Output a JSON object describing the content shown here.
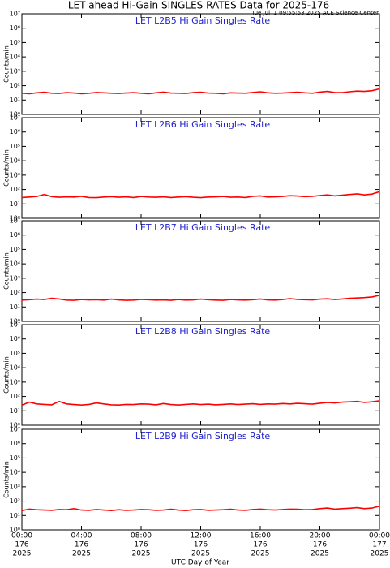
{
  "title": "LET ahead Hi-Gain SINGLES RATES Data for 2025-176",
  "timestamp": "Tue Jul  1 09:55:53 2025 ACE Science Center",
  "chart_data": [
    {
      "type": "line",
      "title": "LET L2B5 Hi Gain Singles Rate",
      "ylabel": "Counts/min",
      "log_y": true,
      "x": [
        0,
        0.5,
        1,
        1.5,
        2,
        2.5,
        3,
        3.5,
        4,
        4.5,
        5,
        5.5,
        6,
        6.5,
        7,
        7.5,
        8,
        8.5,
        9,
        9.5,
        10,
        10.5,
        11,
        11.5,
        12,
        12.5,
        13,
        13.5,
        14,
        14.5,
        15,
        15.5,
        16,
        16.5,
        17,
        17.5,
        18,
        18.5,
        19,
        19.5,
        20,
        20.5,
        21,
        21.5,
        22,
        22.5,
        23,
        23.5,
        24
      ],
      "series": [
        {
          "color": "#ff0000",
          "values": [
            30,
            28,
            32,
            35,
            30,
            29,
            33,
            31,
            28,
            30,
            34,
            32,
            30,
            29,
            31,
            33,
            30,
            28,
            32,
            36,
            31,
            30,
            29,
            33,
            35,
            31,
            30,
            28,
            32,
            31,
            30,
            34,
            38,
            32,
            30,
            31,
            33,
            35,
            32,
            30,
            36,
            40,
            34,
            33,
            38,
            42,
            40,
            45,
            60
          ]
        }
      ],
      "xlim": [
        0,
        24
      ],
      "xticks": [
        0,
        4,
        8,
        12,
        16,
        20,
        24
      ],
      "ylim": [
        1,
        10000000
      ],
      "yticks": [
        {
          "value": 1,
          "label": "10⁰"
        },
        {
          "value": 10,
          "label": "10¹"
        },
        {
          "value": 100,
          "label": "10²"
        },
        {
          "value": 1000,
          "label": "10³"
        },
        {
          "value": 10000,
          "label": "10⁴"
        },
        {
          "value": 100000,
          "label": "10⁵"
        },
        {
          "value": 1000000,
          "label": "10⁶"
        },
        {
          "value": 10000000,
          "label": "10⁷"
        }
      ]
    },
    {
      "type": "line",
      "title": "LET L2B6 Hi Gain Singles Rate",
      "ylabel": "Counts/min",
      "log_y": true,
      "x": [
        0,
        0.5,
        1,
        1.5,
        2,
        2.5,
        3,
        3.5,
        4,
        4.5,
        5,
        5.5,
        6,
        6.5,
        7,
        7.5,
        8,
        8.5,
        9,
        9.5,
        10,
        10.5,
        11,
        11.5,
        12,
        12.5,
        13,
        13.5,
        14,
        14.5,
        15,
        15.5,
        16,
        16.5,
        17,
        17.5,
        18,
        18.5,
        19,
        19.5,
        20,
        20.5,
        21,
        21.5,
        22,
        22.5,
        23,
        23.5,
        24
      ],
      "series": [
        {
          "color": "#ff0000",
          "values": [
            28,
            30,
            33,
            45,
            32,
            29,
            31,
            30,
            34,
            28,
            27,
            30,
            32,
            29,
            31,
            28,
            33,
            30,
            29,
            31,
            28,
            30,
            32,
            29,
            27,
            30,
            31,
            33,
            29,
            30,
            28,
            34,
            36,
            30,
            31,
            33,
            37,
            35,
            32,
            34,
            38,
            42,
            36,
            40,
            45,
            50,
            42,
            48,
            70
          ]
        }
      ],
      "xlim": [
        0,
        24
      ],
      "xticks": [
        0,
        4,
        8,
        12,
        16,
        20,
        24
      ],
      "ylim": [
        1,
        10000000
      ],
      "yticks": [
        {
          "value": 1,
          "label": "10⁰"
        },
        {
          "value": 10,
          "label": "10¹"
        },
        {
          "value": 100,
          "label": "10²"
        },
        {
          "value": 1000,
          "label": "10³"
        },
        {
          "value": 10000,
          "label": "10⁴"
        },
        {
          "value": 100000,
          "label": "10⁵"
        },
        {
          "value": 1000000,
          "label": "10⁶"
        },
        {
          "value": 10000000,
          "label": "10⁷"
        }
      ]
    },
    {
      "type": "line",
      "title": "LET L2B7 Hi Gain Singles Rate",
      "ylabel": "Counts/min",
      "log_y": true,
      "x": [
        0,
        0.5,
        1,
        1.5,
        2,
        2.5,
        3,
        3.5,
        4,
        4.5,
        5,
        5.5,
        6,
        6.5,
        7,
        7.5,
        8,
        8.5,
        9,
        9.5,
        10,
        10.5,
        11,
        11.5,
        12,
        12.5,
        13,
        13.5,
        14,
        14.5,
        15,
        15.5,
        16,
        16.5,
        17,
        17.5,
        18,
        18.5,
        19,
        19.5,
        20,
        20.5,
        21,
        21.5,
        22,
        22.5,
        23,
        23.5,
        24
      ],
      "series": [
        {
          "color": "#ff0000",
          "values": [
            30,
            32,
            35,
            33,
            40,
            36,
            30,
            29,
            33,
            31,
            32,
            30,
            35,
            31,
            29,
            30,
            34,
            32,
            30,
            31,
            29,
            33,
            30,
            31,
            35,
            32,
            30,
            29,
            33,
            31,
            30,
            32,
            36,
            31,
            30,
            33,
            38,
            34,
            32,
            31,
            35,
            37,
            33,
            36,
            40,
            42,
            45,
            50,
            65
          ]
        }
      ],
      "xlim": [
        0,
        24
      ],
      "xticks": [
        0,
        4,
        8,
        12,
        16,
        20,
        24
      ],
      "ylim": [
        1,
        10000000
      ],
      "yticks": [
        {
          "value": 1,
          "label": "10⁰"
        },
        {
          "value": 10,
          "label": "10¹"
        },
        {
          "value": 100,
          "label": "10²"
        },
        {
          "value": 1000,
          "label": "10³"
        },
        {
          "value": 10000,
          "label": "10⁴"
        },
        {
          "value": 100000,
          "label": "10⁵"
        },
        {
          "value": 1000000,
          "label": "10⁶"
        },
        {
          "value": 10000000,
          "label": "10⁷"
        }
      ]
    },
    {
      "type": "line",
      "title": "LET L2B8 Hi Gain Singles Rate",
      "ylabel": "Counts/min",
      "log_y": true,
      "x": [
        0,
        0.5,
        1,
        1.5,
        2,
        2.5,
        3,
        3.5,
        4,
        4.5,
        5,
        5.5,
        6,
        6.5,
        7,
        7.5,
        8,
        8.5,
        9,
        9.5,
        10,
        10.5,
        11,
        11.5,
        12,
        12.5,
        13,
        13.5,
        14,
        14.5,
        15,
        15.5,
        16,
        16.5,
        17,
        17.5,
        18,
        18.5,
        19,
        19.5,
        20,
        20.5,
        21,
        21.5,
        22,
        22.5,
        23,
        23.5,
        24
      ],
      "series": [
        {
          "color": "#ff0000",
          "values": [
            25,
            40,
            30,
            28,
            26,
            45,
            30,
            27,
            25,
            28,
            35,
            30,
            26,
            25,
            28,
            27,
            30,
            29,
            26,
            32,
            27,
            25,
            28,
            30,
            27,
            29,
            26,
            28,
            30,
            27,
            29,
            31,
            28,
            30,
            29,
            32,
            30,
            33,
            31,
            29,
            34,
            38,
            35,
            40,
            42,
            45,
            38,
            42,
            50
          ]
        }
      ],
      "xlim": [
        0,
        24
      ],
      "xticks": [
        0,
        4,
        8,
        12,
        16,
        20,
        24
      ],
      "ylim": [
        1,
        10000000
      ],
      "yticks": [
        {
          "value": 1,
          "label": "10⁰"
        },
        {
          "value": 10,
          "label": "10¹"
        },
        {
          "value": 100,
          "label": "10²"
        },
        {
          "value": 1000,
          "label": "10³"
        },
        {
          "value": 10000,
          "label": "10⁴"
        },
        {
          "value": 100000,
          "label": "10⁵"
        },
        {
          "value": 1000000,
          "label": "10⁶"
        },
        {
          "value": 10000000,
          "label": "10⁷"
        }
      ]
    },
    {
      "type": "line",
      "title": "LET L2B9 Hi Gain Singles Rate",
      "ylabel": "Counts/min",
      "xlabel": "UTC Day of Year",
      "log_y": true,
      "x": [
        0,
        0.5,
        1,
        1.5,
        2,
        2.5,
        3,
        3.5,
        4,
        4.5,
        5,
        5.5,
        6,
        6.5,
        7,
        7.5,
        8,
        8.5,
        9,
        9.5,
        10,
        10.5,
        11,
        11.5,
        12,
        12.5,
        13,
        13.5,
        14,
        14.5,
        15,
        15.5,
        16,
        16.5,
        17,
        17.5,
        18,
        18.5,
        19,
        19.5,
        20,
        20.5,
        21,
        21.5,
        22,
        22.5,
        23,
        23.5,
        24
      ],
      "series": [
        {
          "color": "#ff0000",
          "values": [
            22,
            28,
            25,
            24,
            23,
            26,
            25,
            30,
            24,
            23,
            26,
            24,
            22,
            25,
            23,
            24,
            26,
            25,
            23,
            24,
            27,
            24,
            22,
            25,
            26,
            23,
            24,
            25,
            27,
            24,
            23,
            26,
            28,
            25,
            24,
            26,
            28,
            27,
            25,
            26,
            30,
            33,
            28,
            30,
            32,
            35,
            30,
            33,
            45
          ]
        }
      ],
      "xlim": [
        0,
        24
      ],
      "xticks": [
        {
          "value": 0,
          "label": [
            "00:00",
            "176",
            "2025"
          ]
        },
        {
          "value": 4,
          "label": [
            "04:00",
            "176",
            "2025"
          ]
        },
        {
          "value": 8,
          "label": [
            "08:00",
            "176",
            "2025"
          ]
        },
        {
          "value": 12,
          "label": [
            "12:00",
            "176",
            "2025"
          ]
        },
        {
          "value": 16,
          "label": [
            "16:00",
            "176",
            "2025"
          ]
        },
        {
          "value": 20,
          "label": [
            "20:00",
            "176",
            "2025"
          ]
        },
        {
          "value": 24,
          "label": [
            "00:00",
            "177",
            "2025"
          ]
        }
      ],
      "ylim": [
        1,
        10000000
      ],
      "yticks": [
        {
          "value": 1,
          "label": "10⁰"
        },
        {
          "value": 10,
          "label": "10¹"
        },
        {
          "value": 100,
          "label": "10²"
        },
        {
          "value": 1000,
          "label": "10³"
        },
        {
          "value": 10000,
          "label": "10⁴"
        },
        {
          "value": 100000,
          "label": "10⁵"
        },
        {
          "value": 1000000,
          "label": "10⁶"
        },
        {
          "value": 10000000,
          "label": "10⁷"
        }
      ]
    }
  ]
}
